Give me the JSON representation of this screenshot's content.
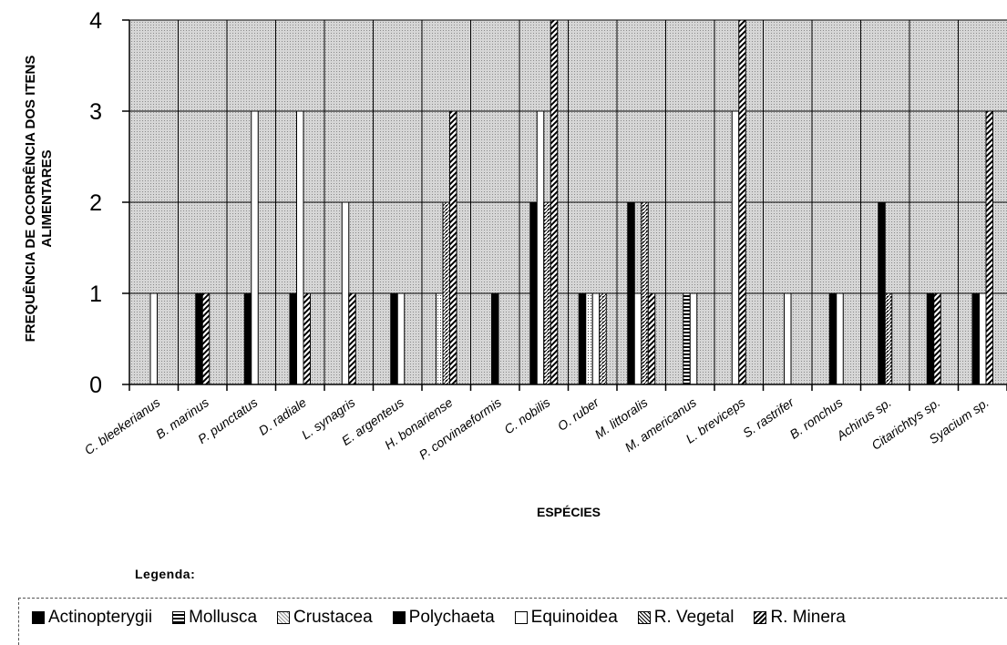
{
  "chart_data": {
    "type": "bar",
    "ylabel": "FREQUÊNCIA DE OCORRÊNCIA DOS ITENS ALIMENTARES",
    "ylabel_lines": [
      "FREQUÊNCIA DE OCORRÊNCIA DOS ITENS",
      "ALIMENTARES"
    ],
    "xlabel": "ESPÉCIES",
    "ylim": [
      0,
      4
    ],
    "yticks": [
      "0",
      "1",
      "2",
      "3",
      "4"
    ],
    "grid": true,
    "categories": [
      "C. bleekerianus",
      "B. marinus",
      "P. punctatus",
      "D. radiale",
      "L. synagris",
      "E. argenteus",
      "H. bonariense",
      "P. corvinaeformis",
      "C. nobilis",
      "O. ruber",
      "M. littoralis",
      "M. americanus",
      "L. breviceps",
      "S. rastrifer",
      "B. ronchus",
      "Achirus sp.",
      "Citarichtys sp.",
      "Syacium sp."
    ],
    "series": [
      {
        "name": "Actinopterygii",
        "pattern": "solid",
        "values": [
          0,
          0,
          1,
          1,
          0,
          1,
          0,
          1,
          2,
          1,
          2,
          0,
          0,
          0,
          1,
          2,
          1,
          1
        ]
      },
      {
        "name": "Mollusca",
        "pattern": "hstripe",
        "values": [
          0,
          0,
          0,
          0,
          0,
          0,
          0,
          0,
          0,
          0,
          0,
          1,
          0,
          0,
          0,
          0,
          0,
          0
        ]
      },
      {
        "name": "Crustacea",
        "pattern": "dots",
        "values": [
          0,
          0,
          0,
          0,
          0,
          0,
          1,
          0,
          0,
          1,
          0,
          0,
          0,
          0,
          0,
          0,
          0,
          0
        ]
      },
      {
        "name": "Polychaeta",
        "pattern": "solid",
        "values": [
          0,
          1,
          0,
          0,
          0,
          0,
          0,
          0,
          0,
          0,
          0,
          0,
          0,
          0,
          0,
          0,
          0,
          0
        ]
      },
      {
        "name": "Equinoidea",
        "pattern": "white",
        "values": [
          1,
          0,
          3,
          3,
          2,
          1,
          0,
          0,
          3,
          1,
          1,
          1,
          3,
          1,
          1,
          0,
          0,
          1
        ]
      },
      {
        "name": "R. Vegetal",
        "pattern": "hatch",
        "values": [
          0,
          0,
          0,
          0,
          0,
          0,
          2,
          0,
          2,
          1,
          2,
          0,
          0,
          0,
          0,
          1,
          0,
          0
        ]
      },
      {
        "name": "R. Mineral",
        "pattern": "diag",
        "values": [
          0,
          1,
          0,
          1,
          1,
          0,
          3,
          0,
          4,
          0,
          1,
          0,
          4,
          0,
          0,
          0,
          1,
          3
        ]
      }
    ]
  },
  "legend": {
    "title": "Legenda:",
    "items": [
      "Actinopterygii",
      "Mollusca",
      "Crustacea",
      "Polychaeta",
      "Equinoidea",
      "R. Vegetal",
      "R. Minera"
    ]
  }
}
